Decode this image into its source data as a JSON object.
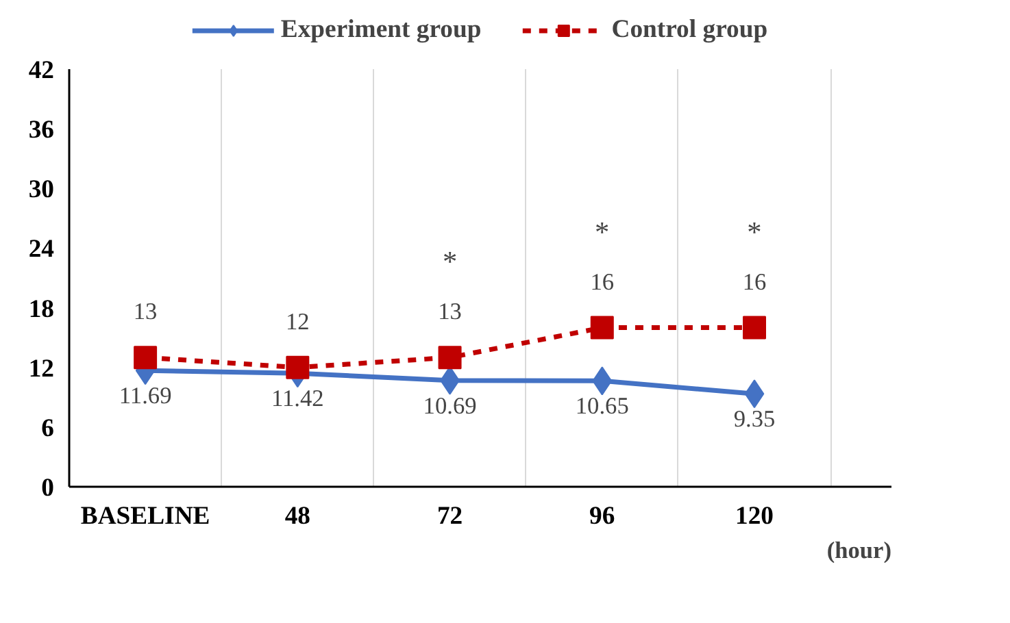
{
  "chart_data": {
    "type": "line",
    "categories": [
      "BASELINE",
      "48",
      "72",
      "96",
      "120"
    ],
    "xlabel": "(hour)",
    "ylim": [
      0,
      42
    ],
    "yticks": [
      0,
      6,
      12,
      18,
      24,
      30,
      36,
      42
    ],
    "grid": "x",
    "legend": "top",
    "data_labels": true,
    "series": [
      {
        "name": "Experiment group",
        "color": "#4472c4",
        "values": [
          11.69,
          11.42,
          10.69,
          10.65,
          9.35
        ],
        "marker": "diamond",
        "line_style": "solid"
      },
      {
        "name": "Control group",
        "color": "#c00000",
        "values": [
          13,
          12,
          13,
          16,
          16
        ],
        "marker": "square",
        "line_style": "dashed"
      }
    ],
    "annotations": [
      {
        "text": "*",
        "x": "72",
        "y": 13
      },
      {
        "text": "*",
        "x": "96",
        "y": 16
      },
      {
        "text": "*",
        "x": "120",
        "y": 16
      }
    ]
  }
}
